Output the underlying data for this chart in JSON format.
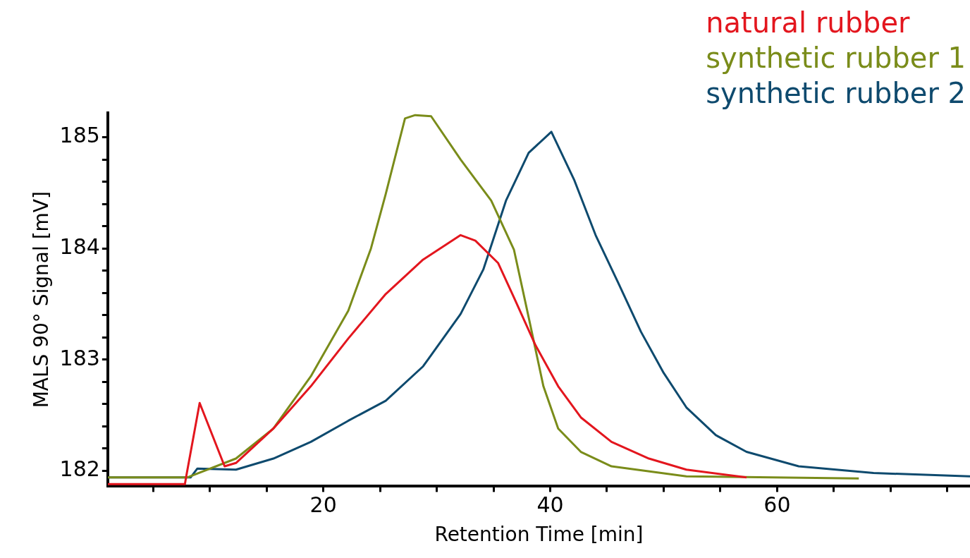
{
  "chart_data": {
    "type": "line",
    "xlabel": "Retention Time [min]",
    "ylabel": "MALS 90° Signal [mV]",
    "xlim": [
      1,
      77
    ],
    "ylim": [
      181.86,
      185.22
    ],
    "xticks": [
      {
        "value": 5,
        "label": null
      },
      {
        "value": 10,
        "label": null
      },
      {
        "value": 15,
        "label": null
      },
      20,
      {
        "value": 25,
        "label": null
      },
      {
        "value": 30,
        "label": null
      },
      {
        "value": 35,
        "label": null
      },
      40,
      {
        "value": 45,
        "label": null
      },
      {
        "value": 50,
        "label": null
      },
      {
        "value": 55,
        "label": null
      },
      60,
      {
        "value": 65,
        "label": null
      },
      {
        "value": 70,
        "label": null
      },
      {
        "value": 75,
        "label": null
      }
    ],
    "yticks": [
      182,
      {
        "value": 182.2,
        "label": null
      },
      {
        "value": 182.4,
        "label": null
      },
      {
        "value": 182.6,
        "label": null
      },
      {
        "value": 182.8,
        "label": null
      },
      183,
      {
        "value": 183.2,
        "label": null
      },
      {
        "value": 183.4,
        "label": null
      },
      {
        "value": 183.6,
        "label": null
      },
      {
        "value": 183.8,
        "label": null
      },
      184,
      {
        "value": 184.2,
        "label": null
      },
      {
        "value": 184.4,
        "label": null
      },
      {
        "value": 184.6,
        "label": null
      },
      {
        "value": 184.8,
        "label": null
      },
      185
    ],
    "grid": false,
    "legend": "top right",
    "marker": "none",
    "line_style": "solid",
    "series": [
      {
        "name": "natural rubber",
        "color": "#e3161e",
        "x": [
          1,
          7.8,
          7.9,
          9.1,
          11.3,
          12.3,
          15.6,
          18.9,
          22.2,
          25.5,
          28.8,
          32.1,
          33.4,
          35.4,
          36.8,
          38.7,
          40.7,
          42.7,
          45.4,
          48.7,
          52,
          57.3
        ],
        "values": [
          181.88,
          181.88,
          181.94,
          182.61,
          182.04,
          182.07,
          182.38,
          182.76,
          183.19,
          183.59,
          183.9,
          184.12,
          184.07,
          183.87,
          183.56,
          183.13,
          182.76,
          182.48,
          182.26,
          182.11,
          182.01,
          181.94
        ]
      },
      {
        "name": "synthetic rubber 1",
        "color": "#7a8c1a",
        "x": [
          1,
          8,
          12.3,
          15.6,
          18.9,
          22.2,
          24.2,
          25.5,
          27.2,
          28.1,
          29.5,
          32.1,
          34.8,
          36.8,
          38.1,
          39.4,
          40.7,
          42.7,
          45.4,
          52,
          67.2
        ],
        "values": [
          181.94,
          181.94,
          182.11,
          182.38,
          182.85,
          183.44,
          184,
          184.49,
          185.17,
          185.2,
          185.19,
          184.8,
          184.43,
          183.99,
          183.38,
          182.76,
          182.38,
          182.17,
          182.04,
          181.95,
          181.93
        ]
      },
      {
        "name": "synthetic rubber 2",
        "color": "#0e4a6e",
        "x": [
          1,
          8.3,
          8.9,
          12.3,
          15.6,
          18.9,
          22.2,
          25.5,
          28.8,
          32.1,
          34.1,
          36.1,
          38.1,
          40.1,
          42.1,
          44,
          46,
          48,
          50,
          52,
          54.6,
          57.3,
          61.9,
          68.5,
          77
        ],
        "values": [
          181.94,
          181.94,
          182.02,
          182.01,
          182.11,
          182.26,
          182.45,
          182.63,
          182.94,
          183.41,
          183.81,
          184.43,
          184.86,
          185.05,
          184.62,
          184.12,
          183.69,
          183.25,
          182.88,
          182.57,
          182.32,
          182.17,
          182.04,
          181.98,
          181.95
        ]
      }
    ]
  }
}
